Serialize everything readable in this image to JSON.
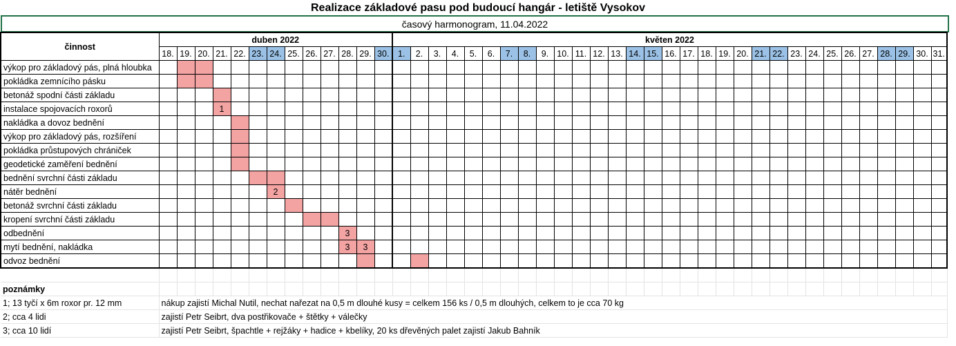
{
  "title": "Realizace základové pasu pod budoucí hangár - letiště Vysokov",
  "subtitle": "časový harmonogram, 11.04.2022",
  "activity_header": "činnost",
  "months": [
    {
      "label": "duben 2022",
      "days": [
        "18.",
        "19.",
        "20.",
        "21.",
        "22.",
        "23.",
        "24.",
        "25.",
        "26.",
        "27.",
        "28.",
        "29.",
        "30."
      ],
      "weekend": [
        23,
        24,
        30
      ]
    },
    {
      "label": "květen 2022",
      "days": [
        "1.",
        "2.",
        "3.",
        "4.",
        "5.",
        "6.",
        "7.",
        "8.",
        "9.",
        "10.",
        "11.",
        "12.",
        "13.",
        "14.",
        "15.",
        "16.",
        "17.",
        "18.",
        "19.",
        "20.",
        "21.",
        "22.",
        "23.",
        "24.",
        "25.",
        "26.",
        "27.",
        "28.",
        "29.",
        "30.",
        "31."
      ],
      "weekend": [
        1,
        7,
        8,
        14,
        15,
        21,
        22,
        28,
        29
      ]
    }
  ],
  "activities": [
    {
      "name": "výkop pro základový pás, plná hloubka",
      "cells": [
        [
          1,
          ""
        ],
        [
          2,
          ""
        ]
      ]
    },
    {
      "name": "pokládka zemnícího pásku",
      "cells": [
        [
          1,
          ""
        ],
        [
          2,
          ""
        ]
      ]
    },
    {
      "name": "betonáž spodní části základu",
      "cells": [
        [
          3,
          ""
        ]
      ]
    },
    {
      "name": "instalace spojovacích roxorů",
      "cells": [
        [
          3,
          "1"
        ]
      ]
    },
    {
      "name": "nakládka a dovoz bednění",
      "cells": [
        [
          4,
          ""
        ]
      ]
    },
    {
      "name": "výkop pro základový pás, rozšíření",
      "cells": [
        [
          4,
          ""
        ]
      ]
    },
    {
      "name": "pokládka průstupových chrániček",
      "cells": [
        [
          4,
          ""
        ]
      ]
    },
    {
      "name": "geodetické zaměření bednění",
      "cells": [
        [
          4,
          ""
        ]
      ]
    },
    {
      "name": "bednění svrchní části základu",
      "cells": [
        [
          5,
          ""
        ],
        [
          6,
          ""
        ]
      ]
    },
    {
      "name": "nátěr bednění",
      "cells": [
        [
          6,
          "2"
        ]
      ]
    },
    {
      "name": "betonáž svrchní části základu",
      "cells": [
        [
          7,
          ""
        ]
      ]
    },
    {
      "name": "kropení svrchní části základu",
      "cells": [
        [
          8,
          ""
        ],
        [
          9,
          ""
        ]
      ]
    },
    {
      "name": "odbednění",
      "cells": [
        [
          10,
          "3"
        ]
      ]
    },
    {
      "name": "mytí bednění, nakládka",
      "cells": [
        [
          10,
          "3"
        ],
        [
          11,
          "3"
        ]
      ]
    },
    {
      "name": "odvoz bednění",
      "cells": [
        [
          11,
          ""
        ],
        [
          14,
          ""
        ]
      ]
    }
  ],
  "notes": {
    "label": "poznámky",
    "items": [
      {
        "key": "1; 13 tyčí x 6m roxor pr. 12 mm",
        "text": "nákup zajistí Michal Nutil, nechat nařezat na 0,5 m dlouhé kusy = celkem 156 ks / 0,5 m dlouhých, celkem to je cca 70 kg"
      },
      {
        "key": "2; cca 4 lidi",
        "text": "zajistí Petr Seibrt, dva postřikovače + štětky + válečky"
      },
      {
        "key": "3; cca 10 lidí",
        "text": "zajistí Petr Seibrt, špachtle + rejžáky + hadice + kbelíky, 20 ks dřevěných palet zajistí Jakub Bahník"
      }
    ]
  }
}
